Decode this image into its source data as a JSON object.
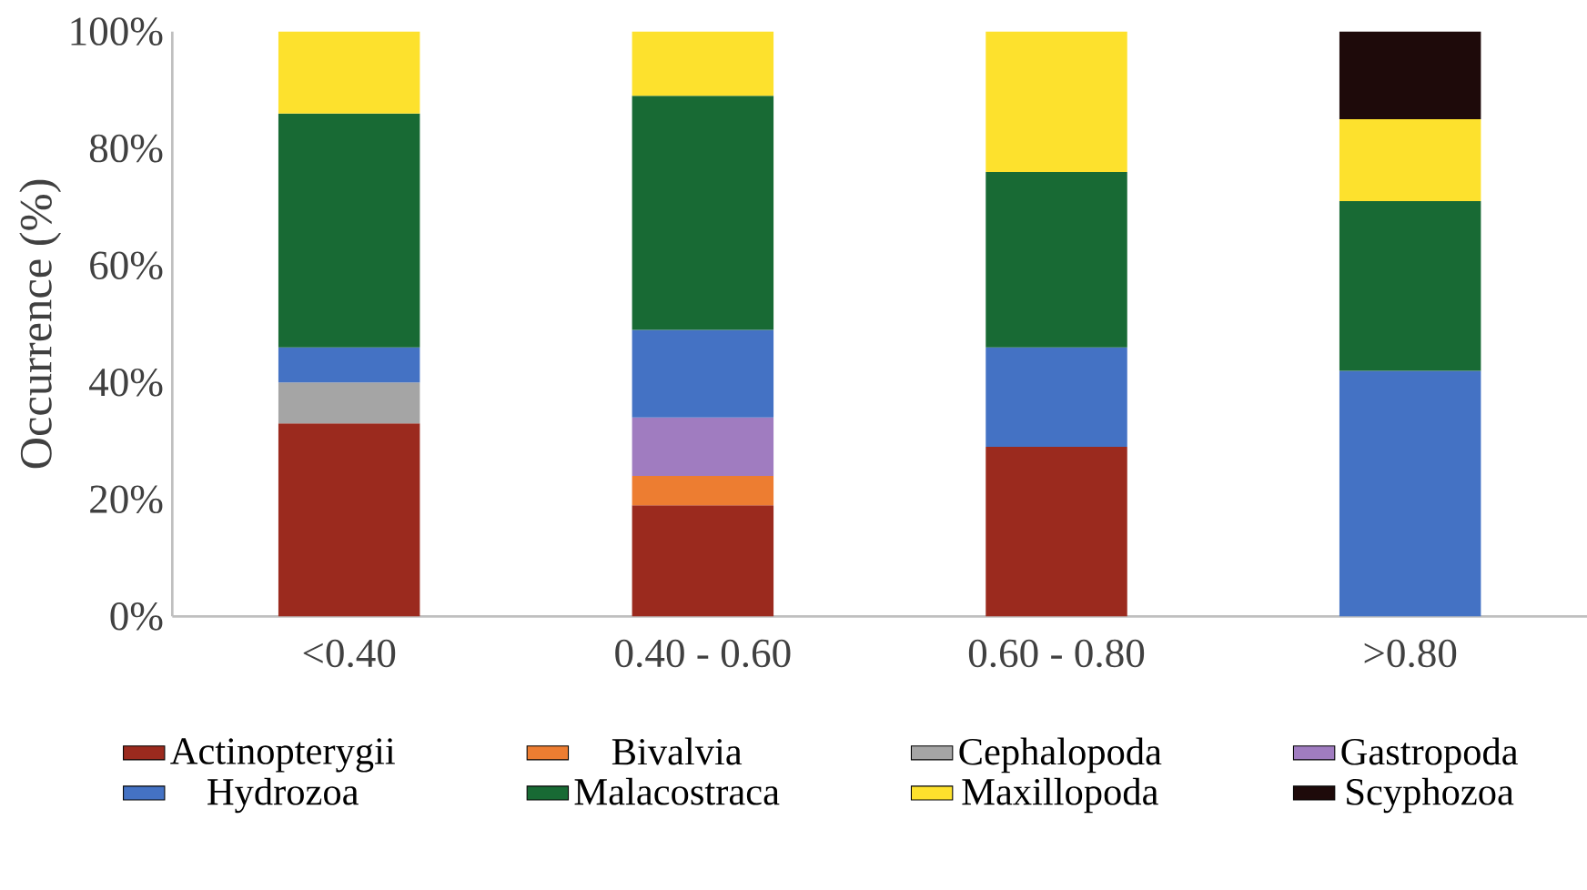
{
  "chart_data": {
    "type": "bar",
    "stacked": true,
    "ylabel": "Occurrence (%)",
    "categories": [
      "<0.40",
      "0.40 - 0.60",
      "0.60 - 0.80",
      ">0.80"
    ],
    "ylim": [
      0,
      100
    ],
    "yticks": [
      {
        "value": 0,
        "label": "0%"
      },
      {
        "value": 20,
        "label": "20%"
      },
      {
        "value": 40,
        "label": "40%"
      },
      {
        "value": 60,
        "label": "60%"
      },
      {
        "value": 80,
        "label": "80%"
      },
      {
        "value": 100,
        "label": "100%"
      }
    ],
    "grid": false,
    "legend": "bottom",
    "series": [
      {
        "name": "Actinopterygii",
        "color": "#9b2a1e",
        "values": [
          33,
          19,
          29,
          null
        ]
      },
      {
        "name": "Bivalvia",
        "color": "#ed7d31",
        "values": [
          null,
          5,
          null,
          null
        ]
      },
      {
        "name": "Cephalopoda",
        "color": "#a5a5a5",
        "values": [
          7,
          null,
          null,
          null
        ]
      },
      {
        "name": "Gastropoda",
        "color": "#a07cc0",
        "values": [
          null,
          10,
          null,
          null
        ]
      },
      {
        "name": "Hydrozoa",
        "color": "#4472c4",
        "values": [
          6,
          15,
          17,
          42
        ]
      },
      {
        "name": "Malacostraca",
        "color": "#186a34",
        "values": [
          40,
          40,
          30,
          29
        ]
      },
      {
        "name": "Maxillopoda",
        "color": "#fde12d",
        "values": [
          14,
          11,
          24,
          14
        ]
      },
      {
        "name": "Scyphozoa",
        "color": "#1e0a0a",
        "values": [
          null,
          null,
          null,
          15
        ]
      }
    ]
  }
}
